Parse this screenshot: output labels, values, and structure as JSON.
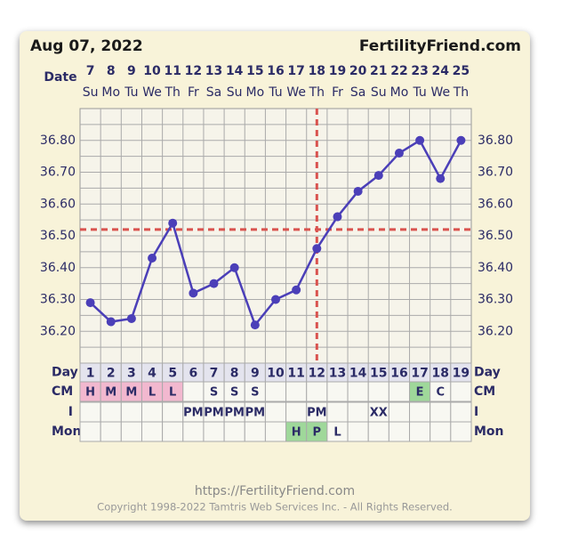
{
  "header": {
    "date": "Aug 07, 2022",
    "site": "FertilityFriend.com"
  },
  "footer": {
    "url": "https://FertilityFriend.com",
    "copyright": "Copyright 1998-2022 Tamtris Web Services Inc. - All Rights Reserved."
  },
  "chart_data": {
    "type": "line",
    "color": "#4b3fb8",
    "categories": [
      "1",
      "2",
      "3",
      "4",
      "5",
      "6",
      "7",
      "8",
      "9",
      "10",
      "11",
      "12",
      "13",
      "14",
      "15",
      "16",
      "17",
      "18",
      "19"
    ],
    "dates": [
      "7",
      "8",
      "9",
      "10",
      "11",
      "12",
      "13",
      "14",
      "15",
      "16",
      "17",
      "18",
      "19",
      "20",
      "21",
      "22",
      "23",
      "24",
      "25"
    ],
    "weekdays": [
      "Su",
      "Mo",
      "Tu",
      "We",
      "Th",
      "Fr",
      "Sa",
      "Su",
      "Mo",
      "Tu",
      "We",
      "Th",
      "Fr",
      "Sa",
      "Su",
      "Mo",
      "Tu",
      "We",
      "Th"
    ],
    "values": [
      36.29,
      36.23,
      36.24,
      36.43,
      36.54,
      36.32,
      36.35,
      36.4,
      36.22,
      36.3,
      36.33,
      36.46,
      36.56,
      36.64,
      36.69,
      36.76,
      36.8,
      36.68,
      36.8
    ],
    "ylim": [
      36.1,
      36.9
    ],
    "yticks": [
      {
        "value": 36.2,
        "label": "36.20"
      },
      {
        "value": 36.3,
        "label": "36.30"
      },
      {
        "value": 36.4,
        "label": "36.40"
      },
      {
        "value": 36.5,
        "label": "36.50"
      },
      {
        "value": 36.6,
        "label": "36.60"
      },
      {
        "value": 36.7,
        "label": "36.70"
      },
      {
        "value": 36.8,
        "label": "36.80"
      }
    ],
    "ygrid": [
      36.15,
      36.25,
      36.35,
      36.45,
      36.55,
      36.65,
      36.75,
      36.85
    ],
    "grid": true,
    "coverline": 36.52,
    "coverline_color": "#d9534f",
    "ovulation_category": 11,
    "row_labels": {
      "date": "Date",
      "day": "Day",
      "cm": "CM",
      "i": "I",
      "mon": "Mon"
    },
    "rows": {
      "cm": {
        "cells": [
          "H",
          "M",
          "M",
          "L",
          "L",
          null,
          "S",
          "S",
          "S",
          null,
          null,
          null,
          null,
          null,
          null,
          null,
          "E",
          "C",
          null
        ],
        "colors": [
          "#f2b8cf",
          "#f2b8cf",
          "#f2b8cf",
          "#f2b8cf",
          "#f2b8cf",
          null,
          null,
          null,
          null,
          null,
          null,
          null,
          null,
          null,
          null,
          null,
          "#9fd89a",
          null,
          null
        ]
      },
      "i": {
        "cells": [
          null,
          null,
          null,
          null,
          null,
          "PM",
          "PM",
          "PM",
          "PM",
          null,
          null,
          "PM",
          null,
          null,
          "XX",
          null,
          null,
          null,
          null
        ],
        "colors": [
          null,
          null,
          null,
          null,
          null,
          null,
          null,
          null,
          null,
          null,
          null,
          null,
          null,
          null,
          null,
          null,
          null,
          null,
          null
        ]
      },
      "mon": {
        "cells": [
          null,
          null,
          null,
          null,
          null,
          null,
          null,
          null,
          null,
          null,
          "H",
          "P",
          "L",
          null,
          null,
          null,
          null,
          null,
          null
        ],
        "colors": [
          null,
          null,
          null,
          null,
          null,
          null,
          null,
          null,
          null,
          null,
          "#9fd89a",
          "#9fd89a",
          null,
          null,
          null,
          null,
          null,
          null,
          null
        ]
      }
    }
  }
}
